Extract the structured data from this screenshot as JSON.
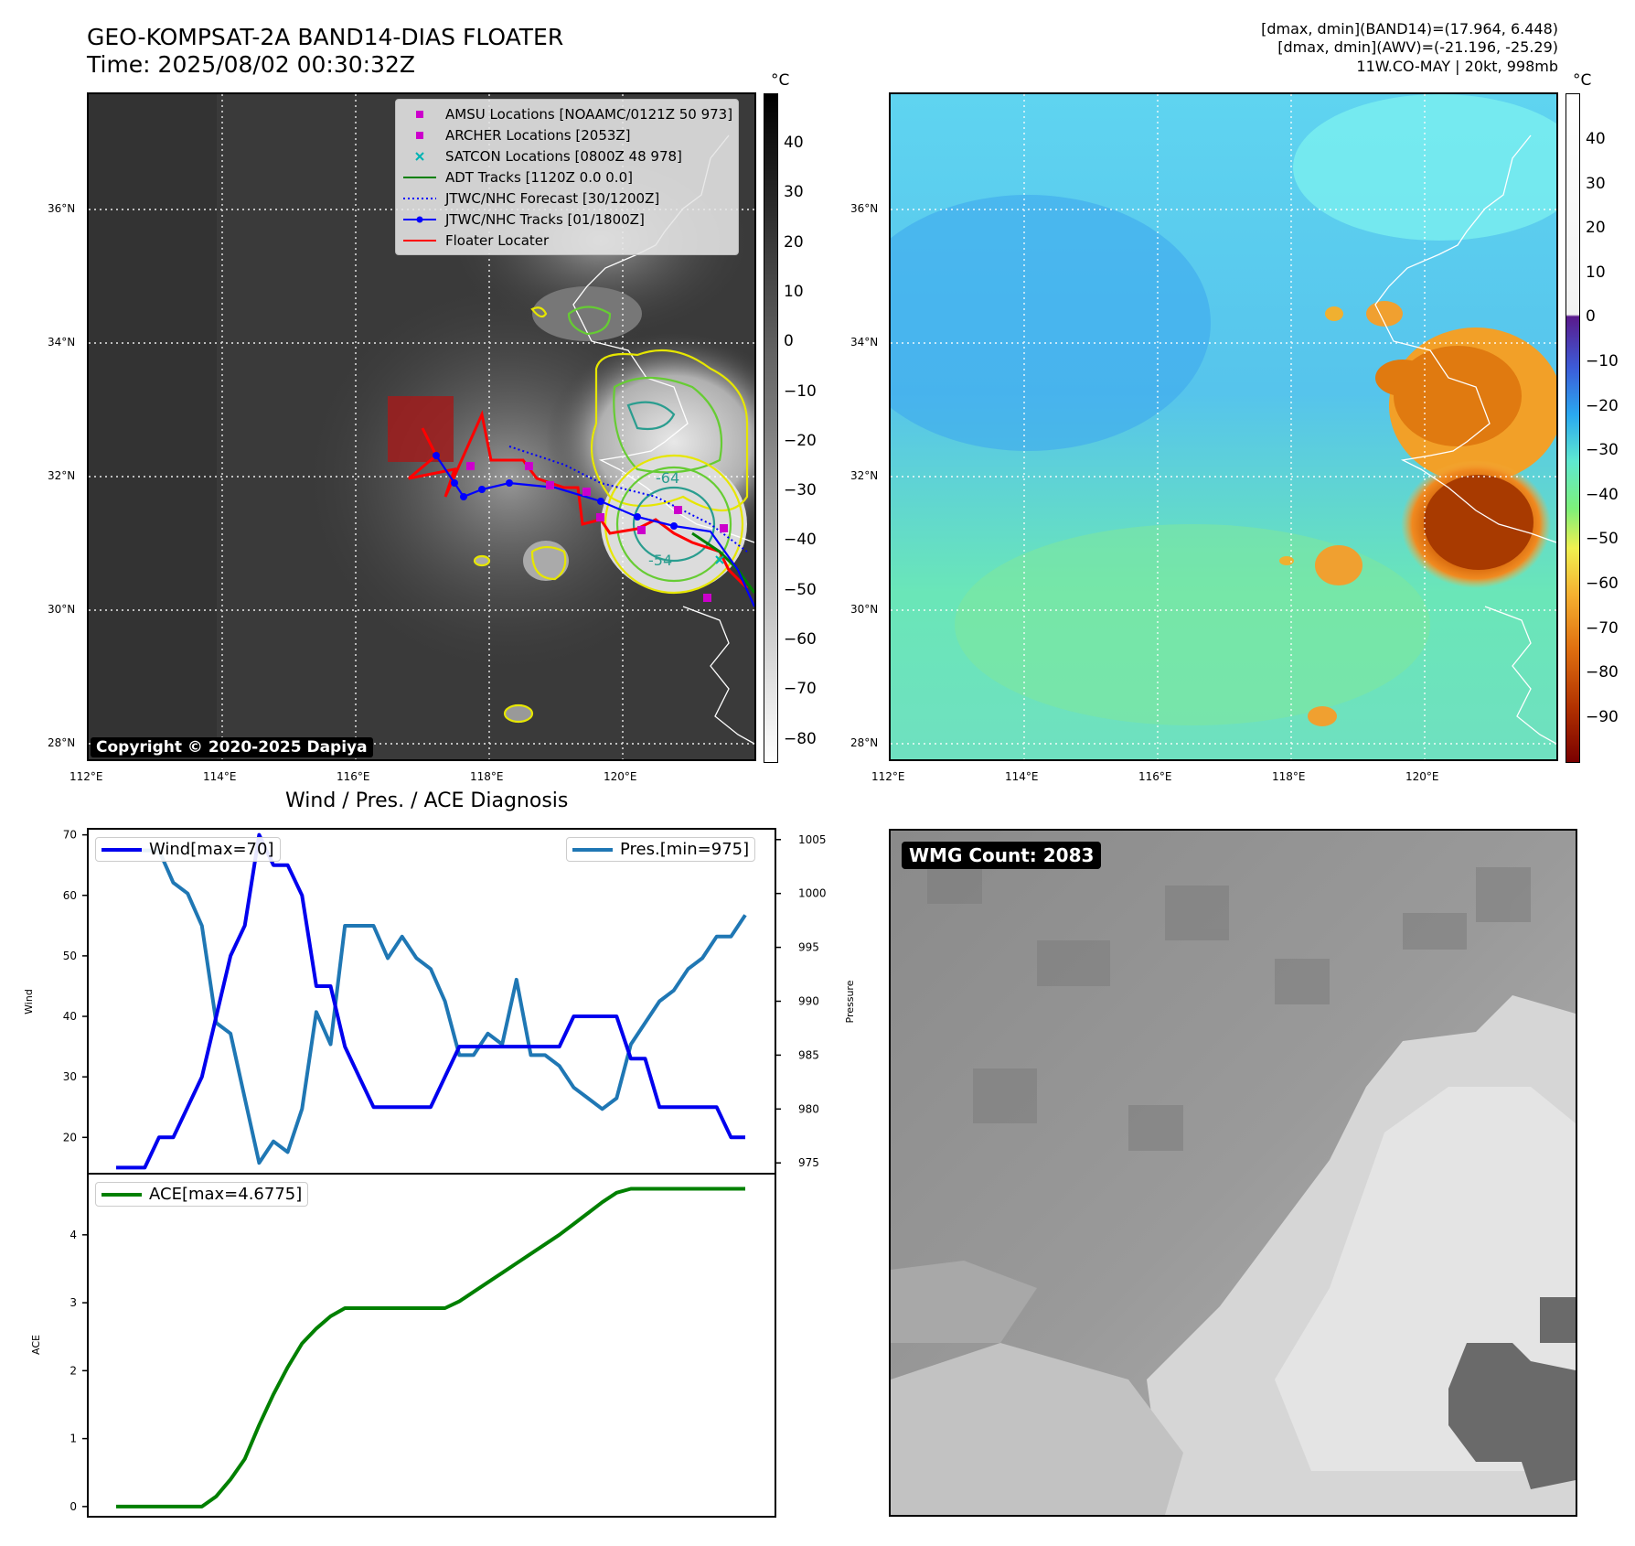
{
  "header": {
    "title_line1": "GEO-KOMPSAT-2A BAND14-DIAS FLOATER",
    "title_line2": "Time: 2025/08/02 00:30:32Z",
    "info_line1": "[dmax, dmin](BAND14)=(17.964, 6.448)",
    "info_line2": "[dmax, dmin](AWV)=(-21.196, -25.29)",
    "info_line3": "11W.CO-MAY | 20kt, 998mb"
  },
  "map": {
    "lon_ticks": [
      "112°E",
      "114°E",
      "116°E",
      "118°E",
      "120°E"
    ],
    "lat_ticks": [
      "36°N",
      "34°N",
      "32°N",
      "30°N",
      "28°N"
    ],
    "copyright": "Copyright © 2020-2025 Dapiya",
    "contour_labels": [
      "-64",
      "-54"
    ]
  },
  "legend": {
    "items": [
      {
        "label": "AMSU Locations [NOAAMC/0121Z 50 973]",
        "color": "#cc00cc",
        "icon": "square-marker"
      },
      {
        "label": "ARCHER Locations [2053Z]",
        "color": "#cc00cc",
        "icon": "square-marker"
      },
      {
        "label": "SATCON Locations [0800Z 48 978]",
        "color": "#00b3b3",
        "icon": "x-marker"
      },
      {
        "label": "ADT Tracks [1120Z 0.0 0.0]",
        "color": "#008000",
        "icon": "solid-line"
      },
      {
        "label": "JTWC/NHC Forecast [30/1200Z]",
        "color": "#0000ff",
        "icon": "dotted-line"
      },
      {
        "label": "JTWC/NHC Tracks [01/1800Z]",
        "color": "#0000ff",
        "icon": "line-dot"
      },
      {
        "label": "Floater Locater",
        "color": "#ff0000",
        "icon": "solid-line"
      }
    ]
  },
  "colorbar_left": {
    "unit": "°C",
    "ticks": [
      "40",
      "30",
      "20",
      "10",
      "0",
      "−10",
      "−20",
      "−30",
      "−40",
      "−50",
      "−60",
      "−70",
      "−80"
    ]
  },
  "colorbar_right": {
    "unit": "°C",
    "ticks": [
      "40",
      "30",
      "20",
      "10",
      "0",
      "−10",
      "−20",
      "−30",
      "−40",
      "−50",
      "−60",
      "−70",
      "−80",
      "−90"
    ]
  },
  "wmg": {
    "label": "WMG Count: 2083"
  },
  "chart_data": [
    {
      "type": "line",
      "title": "Wind / Pres. / ACE Diagnosis",
      "ylabel": "Wind",
      "y2label": "Pressure",
      "ylim": [
        14,
        71
      ],
      "y2lim": [
        974,
        1006
      ],
      "yticks": [
        20,
        30,
        40,
        50,
        60,
        70
      ],
      "y2ticks": [
        975,
        980,
        985,
        990,
        995,
        1000,
        1005
      ],
      "series": [
        {
          "name": "Wind[max=70]",
          "color": "#0000ee",
          "axis": "left",
          "values": [
            15,
            15,
            15,
            20,
            20,
            25,
            30,
            40,
            50,
            55,
            70,
            65,
            65,
            60,
            45,
            45,
            35,
            30,
            25,
            25,
            25,
            25,
            25,
            30,
            35,
            35,
            35,
            35,
            35,
            35,
            35,
            35,
            40,
            40,
            40,
            40,
            33,
            33,
            25,
            25,
            25,
            25,
            25,
            20,
            20
          ]
        },
        {
          "name": "Pres.[min=975]",
          "color": "#1f77b4",
          "axis": "right",
          "values": [
            1004,
            1004,
            1004,
            1004,
            1001,
            1000,
            997,
            988,
            987,
            981,
            975,
            977,
            976,
            980,
            989,
            986,
            997,
            997,
            997,
            994,
            996,
            994,
            993,
            990,
            985,
            985,
            987,
            986,
            992,
            985,
            985,
            984,
            982,
            981,
            980,
            981,
            986,
            988,
            990,
            991,
            993,
            994,
            996,
            996,
            998
          ]
        }
      ]
    },
    {
      "type": "line",
      "ylabel": "ACE",
      "ylim": [
        -0.15,
        4.9
      ],
      "yticks": [
        0,
        1,
        2,
        3,
        4
      ],
      "series": [
        {
          "name": "ACE[max=4.6775]",
          "color": "#008000",
          "values": [
            0,
            0,
            0,
            0,
            0,
            0,
            0,
            0.15,
            0.4,
            0.7,
            1.2,
            1.65,
            2.05,
            2.4,
            2.62,
            2.8,
            2.92,
            2.92,
            2.92,
            2.92,
            2.92,
            2.92,
            2.92,
            2.92,
            3.02,
            3.16,
            3.3,
            3.44,
            3.58,
            3.72,
            3.86,
            4.0,
            4.16,
            4.32,
            4.48,
            4.62,
            4.6775,
            4.6775,
            4.6775,
            4.6775,
            4.6775,
            4.6775,
            4.6775,
            4.6775,
            4.6775
          ]
        }
      ]
    }
  ]
}
